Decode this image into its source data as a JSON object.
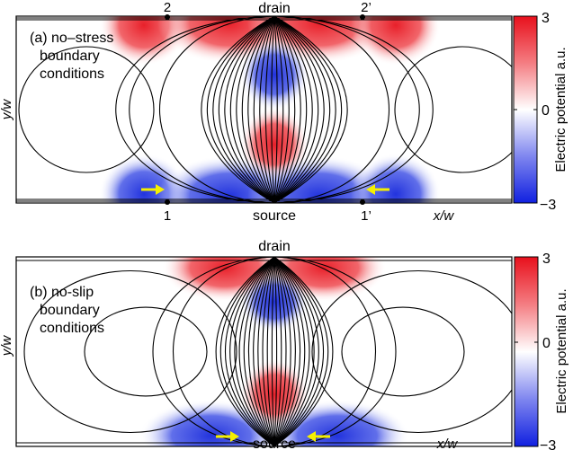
{
  "panel_a": {
    "label_line1": "(a) no–stress",
    "label_line2": "boundary",
    "label_line3": "conditions",
    "top_label": "drain",
    "bottom_label": "source",
    "point_2": "2",
    "point_2p": "2’",
    "point_1": "1",
    "point_1p": "1’",
    "ylabel": "y/w",
    "xlabel": "x/w",
    "colorbar_max": "3",
    "colorbar_mid": "0",
    "colorbar_min": "−3",
    "colorbar_label": "Electric potential  a.u."
  },
  "panel_b": {
    "label_line1": "(b) no-slip",
    "label_line2": "boundary",
    "label_line3": "conditions",
    "top_label": "drain",
    "bottom_label": "source",
    "ylabel": "y/w",
    "xlabel": "x/w",
    "colorbar_max": "3",
    "colorbar_mid": "0",
    "colorbar_min": "−3",
    "colorbar_label": "Electric potential  a.u."
  },
  "colors": {
    "positive": "#e8202a",
    "negative": "#2233dd",
    "neutral": "#ffffff",
    "arrow": "#f5f000",
    "streamline": "#000000"
  }
}
